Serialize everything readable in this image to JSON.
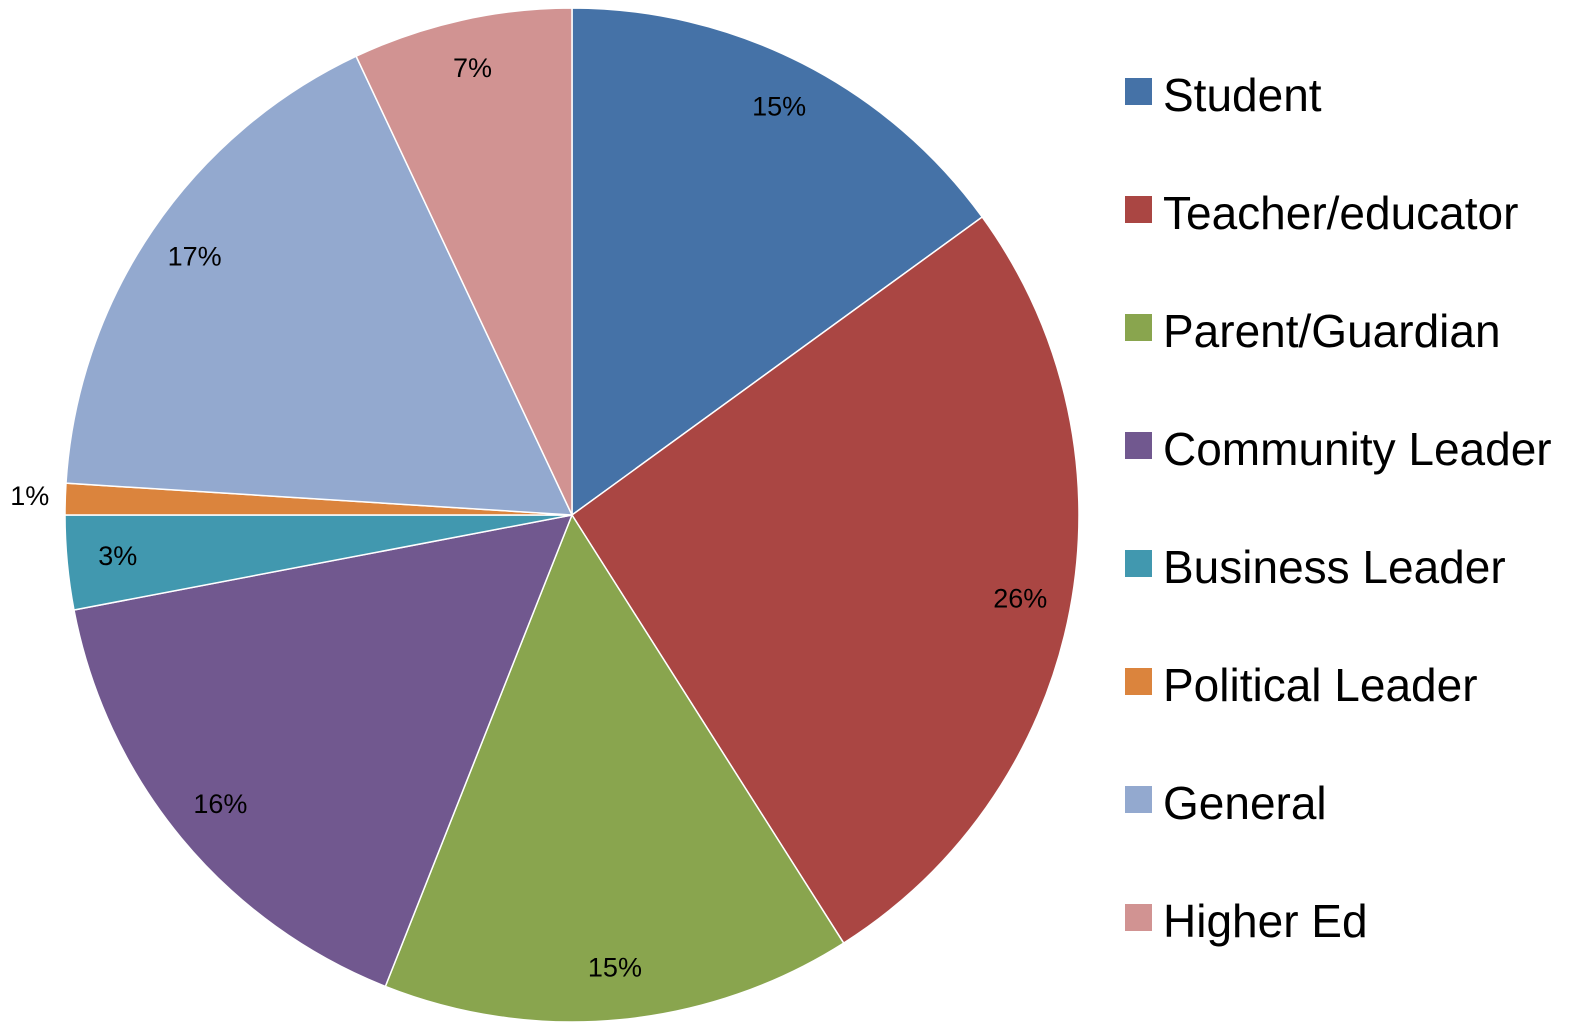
{
  "chart_data": {
    "type": "pie",
    "categories": [
      "Student",
      "Teacher/educator",
      "Parent/Guardian",
      "Community Leader",
      "Business Leader",
      "Political Leader",
      "General",
      "Higher Ed"
    ],
    "values": [
      15,
      26,
      15,
      16,
      3,
      1,
      17,
      7
    ],
    "value_labels": [
      "15%",
      "26%",
      "15%",
      "16%",
      "3%",
      "1%",
      "17%",
      "7%"
    ],
    "colors": [
      "#4572a7",
      "#aa4643",
      "#89a54e",
      "#71588f",
      "#4198af",
      "#db843d",
      "#93a9cf",
      "#d19392"
    ],
    "legend": "right"
  }
}
